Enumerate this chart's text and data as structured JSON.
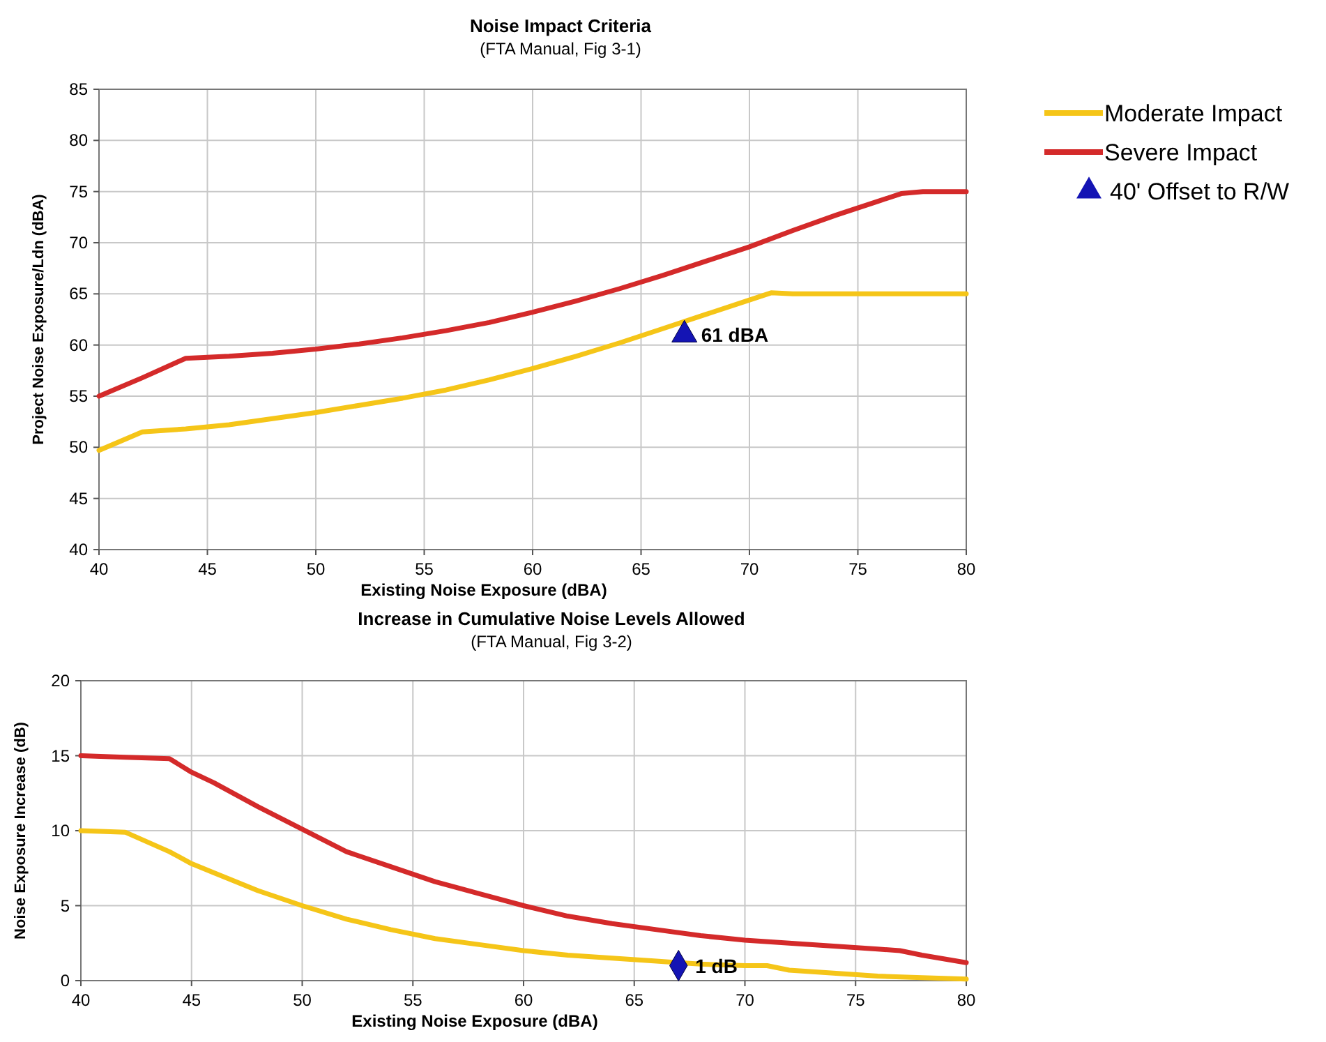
{
  "chart_data": [
    {
      "type": "line",
      "title": "Noise Impact Criteria",
      "subtitle": "(FTA Manual,  Fig 3-1)",
      "xlabel": "Existing Noise Exposure (dBA)",
      "ylabel": "Project Noise Exposure/Ldn (dBA)",
      "xlim": [
        40,
        80
      ],
      "xticks": [
        40,
        45,
        50,
        55,
        60,
        65,
        70,
        75,
        80
      ],
      "ylim": [
        40,
        85
      ],
      "yticks": [
        40,
        45,
        50,
        55,
        60,
        65,
        70,
        75,
        80,
        85
      ],
      "grid": true,
      "legend": "right",
      "line_style": "solid",
      "series": [
        {
          "name": "Moderate Impact",
          "color": "#f5c518",
          "x": [
            40,
            41,
            42,
            44,
            46,
            48,
            50,
            52,
            54,
            56,
            58,
            60,
            62,
            64,
            66,
            68,
            70,
            71,
            72,
            80
          ],
          "values": [
            49.7,
            50.6,
            51.5,
            51.8,
            52.2,
            52.8,
            53.4,
            54.1,
            54.8,
            55.6,
            56.6,
            57.7,
            58.9,
            60.2,
            61.6,
            63.0,
            64.4,
            65.1,
            65,
            65
          ]
        },
        {
          "name": "Severe Impact",
          "color": "#d42a2a",
          "x": [
            40,
            42,
            44,
            46,
            48,
            50,
            52,
            54,
            56,
            58,
            60,
            62,
            64,
            66,
            68,
            70,
            72,
            74,
            76,
            77,
            78,
            80
          ],
          "values": [
            55,
            56.8,
            58.7,
            58.9,
            59.2,
            59.6,
            60.1,
            60.7,
            61.4,
            62.2,
            63.2,
            64.3,
            65.5,
            66.8,
            68.2,
            69.6,
            71.2,
            72.7,
            74.1,
            74.8,
            75,
            75
          ]
        },
        {
          "name": "40' Offset to R/W",
          "type": "scatter",
          "marker": "triangle",
          "color": "#1414b4",
          "x": [
            67
          ],
          "values": [
            61
          ]
        }
      ],
      "annotations": [
        {
          "text": "61 dBA",
          "x": 67,
          "y": 61
        }
      ]
    },
    {
      "type": "line",
      "title": "Increase in Cumulative Noise Levels Allowed",
      "subtitle": "(FTA Manual,  Fig 3-2)",
      "xlabel": "Existing Noise Exposure (dBA)",
      "ylabel": "Noise Exposure Increase (dB)",
      "xlim": [
        40,
        80
      ],
      "xticks": [
        40,
        45,
        50,
        55,
        60,
        65,
        70,
        75,
        80
      ],
      "ylim": [
        0,
        20
      ],
      "yticks": [
        0,
        5,
        10,
        15,
        20
      ],
      "grid": true,
      "line_style": "solid",
      "series": [
        {
          "color": "#f5c518",
          "x": [
            40,
            42,
            44,
            45,
            46,
            48,
            50,
            52,
            54,
            56,
            58,
            60,
            62,
            64,
            66,
            67,
            68,
            70,
            71,
            72,
            74,
            76,
            78,
            80
          ],
          "values": [
            10,
            9.9,
            8.6,
            7.8,
            7.2,
            6.0,
            5.0,
            4.1,
            3.4,
            2.8,
            2.4,
            2.0,
            1.7,
            1.5,
            1.3,
            1.2,
            1.1,
            1.0,
            1.0,
            0.7,
            0.5,
            0.3,
            0.2,
            0.1
          ]
        },
        {
          "color": "#d42a2a",
          "x": [
            40,
            42,
            44,
            45,
            46,
            48,
            50,
            52,
            54,
            56,
            58,
            60,
            62,
            64,
            66,
            68,
            70,
            72,
            74,
            76,
            77,
            78,
            80
          ],
          "values": [
            15,
            14.9,
            14.8,
            13.9,
            13.2,
            11.6,
            10.1,
            8.6,
            7.6,
            6.6,
            5.8,
            5.0,
            4.3,
            3.8,
            3.4,
            3.0,
            2.7,
            2.5,
            2.3,
            2.1,
            2.0,
            1.7,
            1.2
          ]
        },
        {
          "type": "scatter",
          "marker": "diamond",
          "color": "#1414b4",
          "x": [
            67
          ],
          "values": [
            1
          ]
        }
      ],
      "annotations": [
        {
          "text": "1 dB",
          "x": 67,
          "y": 1
        }
      ]
    }
  ]
}
